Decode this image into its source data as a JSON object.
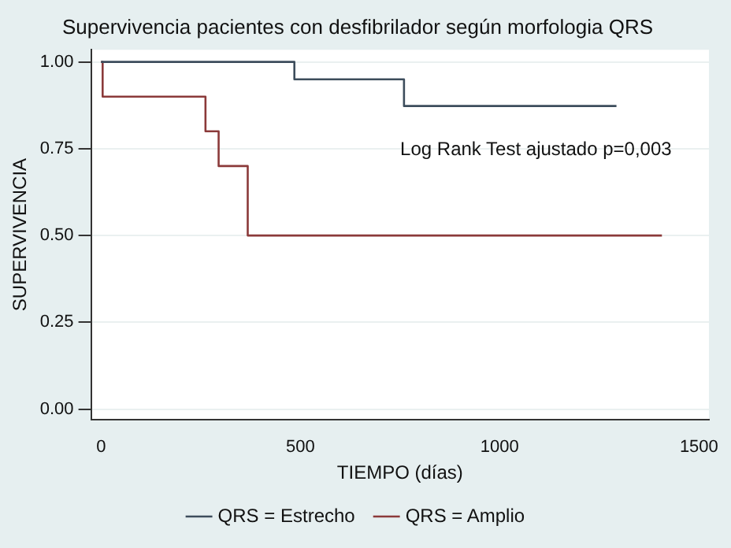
{
  "chart_data": {
    "type": "step",
    "title": "Supervivencia pacientes con desfibrilador según morfologia QRS",
    "xlabel": "TIEMPO (días)",
    "ylabel": "SUPERVIVENCIA",
    "series": [
      {
        "name": "QRS = Estrecho",
        "color": "#3d4d5c",
        "x": [
          0,
          485,
          760,
          1293
        ],
        "values": [
          1,
          0.95,
          0.873,
          0.873
        ]
      },
      {
        "name": "QRS = Amplio",
        "color": "#8b3a3a",
        "x": [
          0,
          4,
          262,
          295,
          368,
          1407
        ],
        "values": [
          1,
          0.9,
          0.8,
          0.7,
          0.5,
          0.5
        ]
      }
    ],
    "annotations": [
      "Log Rank Test ajustado p=0,003"
    ],
    "xlim": [
      -25,
      1525
    ],
    "xticks": [
      0,
      500,
      1000,
      1500
    ],
    "ylim": [
      -0.03,
      1.035
    ],
    "yticks": [
      {
        "value": 0,
        "label": "0.00"
      },
      {
        "value": 0.25,
        "label": "0.25"
      },
      {
        "value": 0.5,
        "label": "0.50"
      },
      {
        "value": 0.75,
        "label": "0.75"
      },
      {
        "value": 1,
        "label": "1.00"
      }
    ],
    "grid": "y",
    "legend": "bottom",
    "marker": "none",
    "line_style": "solid"
  }
}
